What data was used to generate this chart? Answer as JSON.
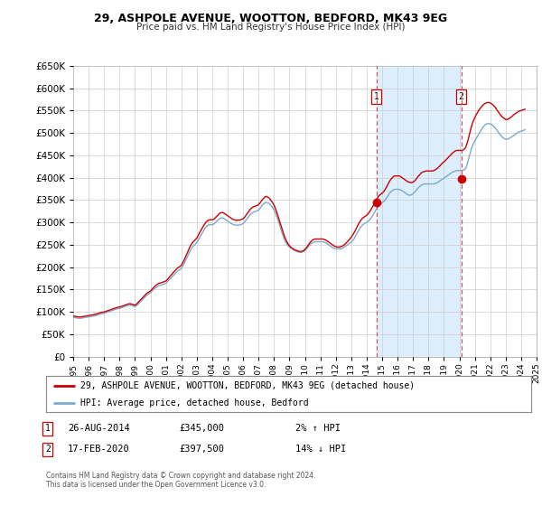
{
  "title": "29, ASHPOLE AVENUE, WOOTTON, BEDFORD, MK43 9EG",
  "subtitle": "Price paid vs. HM Land Registry's House Price Index (HPI)",
  "ylim": [
    0,
    650000
  ],
  "yticks": [
    0,
    50000,
    100000,
    150000,
    200000,
    250000,
    300000,
    350000,
    400000,
    450000,
    500000,
    550000,
    600000,
    650000
  ],
  "line1_color": "#cc0000",
  "line2_color": "#7aaacc",
  "shade_color": "#ddeeff",
  "transaction1_date": 2014.62,
  "transaction1_price": 345000,
  "transaction2_date": 2020.12,
  "transaction2_price": 397500,
  "legend1": "29, ASHPOLE AVENUE, WOOTTON, BEDFORD, MK43 9EG (detached house)",
  "legend2": "HPI: Average price, detached house, Bedford",
  "note1_num": "1",
  "note1_date": "26-AUG-2014",
  "note1_price": "£345,000",
  "note1_hpi": "2% ↑ HPI",
  "note2_num": "2",
  "note2_date": "17-FEB-2020",
  "note2_price": "£397,500",
  "note2_hpi": "14% ↓ HPI",
  "footer": "Contains HM Land Registry data © Crown copyright and database right 2024.\nThis data is licensed under the Open Government Licence v3.0.",
  "background_color": "#ffffff",
  "plot_bg": "#ffffff",
  "grid_color": "#cccccc",
  "hpi_years": [
    1995.0,
    1995.083,
    1995.167,
    1995.25,
    1995.333,
    1995.417,
    1995.5,
    1995.583,
    1995.667,
    1995.75,
    1995.833,
    1995.917,
    1996.0,
    1996.083,
    1996.167,
    1996.25,
    1996.333,
    1996.417,
    1996.5,
    1996.583,
    1996.667,
    1996.75,
    1996.833,
    1996.917,
    1997.0,
    1997.083,
    1997.167,
    1997.25,
    1997.333,
    1997.417,
    1997.5,
    1997.583,
    1997.667,
    1997.75,
    1997.833,
    1997.917,
    1998.0,
    1998.083,
    1998.167,
    1998.25,
    1998.333,
    1998.417,
    1998.5,
    1998.583,
    1998.667,
    1998.75,
    1998.833,
    1998.917,
    1999.0,
    1999.083,
    1999.167,
    1999.25,
    1999.333,
    1999.417,
    1999.5,
    1999.583,
    1999.667,
    1999.75,
    1999.833,
    1999.917,
    2000.0,
    2000.083,
    2000.167,
    2000.25,
    2000.333,
    2000.417,
    2000.5,
    2000.583,
    2000.667,
    2000.75,
    2000.833,
    2000.917,
    2001.0,
    2001.083,
    2001.167,
    2001.25,
    2001.333,
    2001.417,
    2001.5,
    2001.583,
    2001.667,
    2001.75,
    2001.833,
    2001.917,
    2002.0,
    2002.083,
    2002.167,
    2002.25,
    2002.333,
    2002.417,
    2002.5,
    2002.583,
    2002.667,
    2002.75,
    2002.833,
    2002.917,
    2003.0,
    2003.083,
    2003.167,
    2003.25,
    2003.333,
    2003.417,
    2003.5,
    2003.583,
    2003.667,
    2003.75,
    2003.833,
    2003.917,
    2004.0,
    2004.083,
    2004.167,
    2004.25,
    2004.333,
    2004.417,
    2004.5,
    2004.583,
    2004.667,
    2004.75,
    2004.833,
    2004.917,
    2005.0,
    2005.083,
    2005.167,
    2005.25,
    2005.333,
    2005.417,
    2005.5,
    2005.583,
    2005.667,
    2005.75,
    2005.833,
    2005.917,
    2006.0,
    2006.083,
    2006.167,
    2006.25,
    2006.333,
    2006.417,
    2006.5,
    2006.583,
    2006.667,
    2006.75,
    2006.833,
    2006.917,
    2007.0,
    2007.083,
    2007.167,
    2007.25,
    2007.333,
    2007.417,
    2007.5,
    2007.583,
    2007.667,
    2007.75,
    2007.833,
    2007.917,
    2008.0,
    2008.083,
    2008.167,
    2008.25,
    2008.333,
    2008.417,
    2008.5,
    2008.583,
    2008.667,
    2008.75,
    2008.833,
    2008.917,
    2009.0,
    2009.083,
    2009.167,
    2009.25,
    2009.333,
    2009.417,
    2009.5,
    2009.583,
    2009.667,
    2009.75,
    2009.833,
    2009.917,
    2010.0,
    2010.083,
    2010.167,
    2010.25,
    2010.333,
    2010.417,
    2010.5,
    2010.583,
    2010.667,
    2010.75,
    2010.833,
    2010.917,
    2011.0,
    2011.083,
    2011.167,
    2011.25,
    2011.333,
    2011.417,
    2011.5,
    2011.583,
    2011.667,
    2011.75,
    2011.833,
    2011.917,
    2012.0,
    2012.083,
    2012.167,
    2012.25,
    2012.333,
    2012.417,
    2012.5,
    2012.583,
    2012.667,
    2012.75,
    2012.833,
    2012.917,
    2013.0,
    2013.083,
    2013.167,
    2013.25,
    2013.333,
    2013.417,
    2013.5,
    2013.583,
    2013.667,
    2013.75,
    2013.833,
    2013.917,
    2014.0,
    2014.083,
    2014.167,
    2014.25,
    2014.333,
    2014.417,
    2014.5,
    2014.583,
    2014.667,
    2014.75,
    2014.833,
    2014.917,
    2015.0,
    2015.083,
    2015.167,
    2015.25,
    2015.333,
    2015.417,
    2015.5,
    2015.583,
    2015.667,
    2015.75,
    2015.833,
    2015.917,
    2016.0,
    2016.083,
    2016.167,
    2016.25,
    2016.333,
    2016.417,
    2016.5,
    2016.583,
    2016.667,
    2016.75,
    2016.833,
    2016.917,
    2017.0,
    2017.083,
    2017.167,
    2017.25,
    2017.333,
    2017.417,
    2017.5,
    2017.583,
    2017.667,
    2017.75,
    2017.833,
    2017.917,
    2018.0,
    2018.083,
    2018.167,
    2018.25,
    2018.333,
    2018.417,
    2018.5,
    2018.583,
    2018.667,
    2018.75,
    2018.833,
    2018.917,
    2019.0,
    2019.083,
    2019.167,
    2019.25,
    2019.333,
    2019.417,
    2019.5,
    2019.583,
    2019.667,
    2019.75,
    2019.833,
    2019.917,
    2020.0,
    2020.083,
    2020.167,
    2020.25,
    2020.333,
    2020.417,
    2020.5,
    2020.583,
    2020.667,
    2020.75,
    2020.833,
    2020.917,
    2021.0,
    2021.083,
    2021.167,
    2021.25,
    2021.333,
    2021.417,
    2021.5,
    2021.583,
    2021.667,
    2021.75,
    2021.833,
    2021.917,
    2022.0,
    2022.083,
    2022.167,
    2022.25,
    2022.333,
    2022.417,
    2022.5,
    2022.583,
    2022.667,
    2022.75,
    2022.833,
    2022.917,
    2023.0,
    2023.083,
    2023.167,
    2023.25,
    2023.333,
    2023.417,
    2023.5,
    2023.583,
    2023.667,
    2023.75,
    2023.833,
    2023.917,
    2024.0,
    2024.083,
    2024.167,
    2024.25
  ],
  "hpi_vals": [
    88000,
    87500,
    87000,
    86500,
    86000,
    85800,
    86000,
    86500,
    87000,
    87500,
    88000,
    88500,
    89000,
    89500,
    90000,
    90500,
    91000,
    91500,
    92500,
    93500,
    94500,
    95500,
    96000,
    96500,
    97000,
    98000,
    99000,
    100000,
    101000,
    102000,
    103000,
    104000,
    105000,
    106000,
    107000,
    107500,
    108000,
    109000,
    110000,
    111000,
    112000,
    113000,
    114000,
    115000,
    115500,
    115000,
    114000,
    113000,
    112000,
    114000,
    116000,
    119000,
    122000,
    125000,
    128000,
    131000,
    134000,
    137000,
    139000,
    141000,
    143000,
    146000,
    149000,
    152000,
    154000,
    156000,
    158000,
    159000,
    160000,
    161000,
    162000,
    163000,
    164000,
    167000,
    170000,
    173000,
    176000,
    179000,
    182000,
    185000,
    188000,
    191000,
    193000,
    195000,
    197000,
    202000,
    207000,
    213000,
    219000,
    225000,
    231000,
    237000,
    242000,
    246000,
    249000,
    252000,
    255000,
    260000,
    265000,
    270000,
    275000,
    280000,
    285000,
    289000,
    292000,
    294000,
    295000,
    295000,
    295000,
    296000,
    298000,
    301000,
    304000,
    307000,
    309000,
    310000,
    310000,
    309000,
    307000,
    305000,
    303000,
    301000,
    299000,
    297000,
    296000,
    295000,
    294000,
    294000,
    294000,
    294000,
    295000,
    296000,
    297000,
    300000,
    304000,
    308000,
    312000,
    316000,
    319000,
    321000,
    323000,
    324000,
    325000,
    326000,
    328000,
    331000,
    335000,
    339000,
    342000,
    344000,
    345000,
    344000,
    342000,
    340000,
    337000,
    333000,
    328000,
    322000,
    314000,
    306000,
    297000,
    288000,
    279000,
    271000,
    263000,
    257000,
    252000,
    248000,
    245000,
    243000,
    241000,
    239000,
    237000,
    236000,
    235000,
    234000,
    233000,
    233000,
    234000,
    235000,
    237000,
    240000,
    243000,
    247000,
    250000,
    253000,
    255000,
    256000,
    257000,
    257000,
    257000,
    257000,
    257000,
    257000,
    257000,
    256000,
    255000,
    253000,
    251000,
    249000,
    247000,
    245000,
    243000,
    242000,
    241000,
    241000,
    241000,
    241000,
    241000,
    242000,
    244000,
    246000,
    248000,
    250000,
    252000,
    254000,
    256000,
    259000,
    263000,
    268000,
    273000,
    278000,
    283000,
    288000,
    292000,
    295000,
    297000,
    299000,
    300000,
    302000,
    305000,
    308000,
    312000,
    317000,
    322000,
    327000,
    332000,
    337000,
    340000,
    342000,
    344000,
    346000,
    349000,
    353000,
    357000,
    362000,
    366000,
    369000,
    371000,
    373000,
    374000,
    374000,
    374000,
    374000,
    373000,
    372000,
    370000,
    368000,
    366000,
    364000,
    362000,
    361000,
    361000,
    362000,
    364000,
    367000,
    370000,
    374000,
    377000,
    380000,
    382000,
    384000,
    385000,
    386000,
    386000,
    386000,
    386000,
    386000,
    386000,
    386000,
    386000,
    387000,
    388000,
    389000,
    391000,
    393000,
    395000,
    397000,
    399000,
    401000,
    403000,
    405000,
    407000,
    409000,
    411000,
    413000,
    414000,
    415000,
    416000,
    416000,
    416000,
    416000,
    416000,
    417000,
    418000,
    421000,
    430000,
    440000,
    451000,
    461000,
    470000,
    477000,
    482000,
    487000,
    492000,
    497000,
    502000,
    507000,
    511000,
    515000,
    518000,
    520000,
    521000,
    521000,
    520000,
    519000,
    517000,
    514000,
    511000,
    507000,
    503000,
    499000,
    495000,
    492000,
    489000,
    487000,
    486000,
    486000,
    487000,
    488000,
    490000,
    492000,
    494000,
    496000,
    498000,
    500000,
    502000,
    503000,
    504000,
    505000,
    506000,
    507000
  ],
  "price_years": [
    1995.0,
    1995.083,
    1995.167,
    1995.25,
    1995.333,
    1995.417,
    1995.5,
    1995.583,
    1995.667,
    1995.75,
    1995.833,
    1995.917,
    1996.0,
    1996.083,
    1996.167,
    1996.25,
    1996.333,
    1996.417,
    1996.5,
    1996.583,
    1996.667,
    1996.75,
    1996.833,
    1996.917,
    1997.0,
    1997.083,
    1997.167,
    1997.25,
    1997.333,
    1997.417,
    1997.5,
    1997.583,
    1997.667,
    1997.75,
    1997.833,
    1997.917,
    1998.0,
    1998.083,
    1998.167,
    1998.25,
    1998.333,
    1998.417,
    1998.5,
    1998.583,
    1998.667,
    1998.75,
    1998.833,
    1998.917,
    1999.0,
    1999.083,
    1999.167,
    1999.25,
    1999.333,
    1999.417,
    1999.5,
    1999.583,
    1999.667,
    1999.75,
    1999.833,
    1999.917,
    2000.0,
    2000.083,
    2000.167,
    2000.25,
    2000.333,
    2000.417,
    2000.5,
    2000.583,
    2000.667,
    2000.75,
    2000.833,
    2000.917,
    2001.0,
    2001.083,
    2001.167,
    2001.25,
    2001.333,
    2001.417,
    2001.5,
    2001.583,
    2001.667,
    2001.75,
    2001.833,
    2001.917,
    2002.0,
    2002.083,
    2002.167,
    2002.25,
    2002.333,
    2002.417,
    2002.5,
    2002.583,
    2002.667,
    2002.75,
    2002.833,
    2002.917,
    2003.0,
    2003.083,
    2003.167,
    2003.25,
    2003.333,
    2003.417,
    2003.5,
    2003.583,
    2003.667,
    2003.75,
    2003.833,
    2003.917,
    2004.0,
    2004.083,
    2004.167,
    2004.25,
    2004.333,
    2004.417,
    2004.5,
    2004.583,
    2004.667,
    2004.75,
    2004.833,
    2004.917,
    2005.0,
    2005.083,
    2005.167,
    2005.25,
    2005.333,
    2005.417,
    2005.5,
    2005.583,
    2005.667,
    2005.75,
    2005.833,
    2005.917,
    2006.0,
    2006.083,
    2006.167,
    2006.25,
    2006.333,
    2006.417,
    2006.5,
    2006.583,
    2006.667,
    2006.75,
    2006.833,
    2006.917,
    2007.0,
    2007.083,
    2007.167,
    2007.25,
    2007.333,
    2007.417,
    2007.5,
    2007.583,
    2007.667,
    2007.75,
    2007.833,
    2007.917,
    2008.0,
    2008.083,
    2008.167,
    2008.25,
    2008.333,
    2008.417,
    2008.5,
    2008.583,
    2008.667,
    2008.75,
    2008.833,
    2008.917,
    2009.0,
    2009.083,
    2009.167,
    2009.25,
    2009.333,
    2009.417,
    2009.5,
    2009.583,
    2009.667,
    2009.75,
    2009.833,
    2009.917,
    2010.0,
    2010.083,
    2010.167,
    2010.25,
    2010.333,
    2010.417,
    2010.5,
    2010.583,
    2010.667,
    2010.75,
    2010.833,
    2010.917,
    2011.0,
    2011.083,
    2011.167,
    2011.25,
    2011.333,
    2011.417,
    2011.5,
    2011.583,
    2011.667,
    2011.75,
    2011.833,
    2011.917,
    2012.0,
    2012.083,
    2012.167,
    2012.25,
    2012.333,
    2012.417,
    2012.5,
    2012.583,
    2012.667,
    2012.75,
    2012.833,
    2012.917,
    2013.0,
    2013.083,
    2013.167,
    2013.25,
    2013.333,
    2013.417,
    2013.5,
    2013.583,
    2013.667,
    2013.75,
    2013.833,
    2013.917,
    2014.0,
    2014.083,
    2014.167,
    2014.25,
    2014.333,
    2014.417,
    2014.5,
    2014.583,
    2014.667,
    2014.75,
    2014.833,
    2014.917,
    2015.0,
    2015.083,
    2015.167,
    2015.25,
    2015.333,
    2015.417,
    2015.5,
    2015.583,
    2015.667,
    2015.75,
    2015.833,
    2015.917,
    2016.0,
    2016.083,
    2016.167,
    2016.25,
    2016.333,
    2016.417,
    2016.5,
    2016.583,
    2016.667,
    2016.75,
    2016.833,
    2016.917,
    2017.0,
    2017.083,
    2017.167,
    2017.25,
    2017.333,
    2017.417,
    2017.5,
    2017.583,
    2017.667,
    2017.75,
    2017.833,
    2017.917,
    2018.0,
    2018.083,
    2018.167,
    2018.25,
    2018.333,
    2018.417,
    2018.5,
    2018.583,
    2018.667,
    2018.75,
    2018.833,
    2018.917,
    2019.0,
    2019.083,
    2019.167,
    2019.25,
    2019.333,
    2019.417,
    2019.5,
    2019.583,
    2019.667,
    2019.75,
    2019.833,
    2019.917,
    2020.0,
    2020.083,
    2020.167,
    2020.25,
    2020.333,
    2020.417,
    2020.5,
    2020.583,
    2020.667,
    2020.75,
    2020.833,
    2020.917,
    2021.0,
    2021.083,
    2021.167,
    2021.25,
    2021.333,
    2021.417,
    2021.5,
    2021.583,
    2021.667,
    2021.75,
    2021.833,
    2021.917,
    2022.0,
    2022.083,
    2022.167,
    2022.25,
    2022.333,
    2022.417,
    2022.5,
    2022.583,
    2022.667,
    2022.75,
    2022.833,
    2022.917,
    2023.0,
    2023.083,
    2023.167,
    2023.25,
    2023.333,
    2023.417,
    2023.5,
    2023.583,
    2023.667,
    2023.75,
    2023.833,
    2023.917,
    2024.0,
    2024.083,
    2024.167,
    2024.25
  ],
  "price_vals": [
    91000,
    90500,
    90000,
    89500,
    89000,
    88800,
    89000,
    89500,
    90000,
    90500,
    91000,
    91500,
    92000,
    92500,
    93000,
    93500,
    94000,
    94500,
    95500,
    96500,
    97500,
    98500,
    99000,
    99500,
    100000,
    101000,
    102000,
    103000,
    104000,
    105000,
    106000,
    107000,
    108000,
    109000,
    110000,
    110500,
    111000,
    112000,
    113000,
    114000,
    115000,
    116000,
    117000,
    118000,
    118500,
    118000,
    117000,
    116000,
    115000,
    117000,
    120000,
    123000,
    126000,
    129000,
    132000,
    135000,
    138000,
    141000,
    143000,
    145000,
    147000,
    150000,
    153000,
    156000,
    159000,
    161000,
    163000,
    164000,
    165000,
    166000,
    167000,
    168000,
    169000,
    172000,
    175000,
    179000,
    182000,
    185000,
    189000,
    192000,
    195000,
    198000,
    200000,
    202000,
    204000,
    209000,
    215000,
    221000,
    228000,
    234000,
    241000,
    247000,
    252000,
    256000,
    259000,
    262000,
    265000,
    270000,
    276000,
    281000,
    286000,
    291000,
    296000,
    300000,
    303000,
    305000,
    306000,
    306000,
    306000,
    307000,
    309000,
    312000,
    315000,
    318000,
    321000,
    322000,
    322000,
    321000,
    319000,
    317000,
    315000,
    313000,
    311000,
    309000,
    307000,
    306000,
    305000,
    305000,
    305000,
    305000,
    306000,
    307000,
    308000,
    311000,
    315000,
    319000,
    323000,
    327000,
    331000,
    333000,
    335000,
    336000,
    337000,
    338000,
    340000,
    343000,
    347000,
    351000,
    354000,
    357000,
    358000,
    357000,
    355000,
    352000,
    348000,
    344000,
    339000,
    332000,
    324000,
    315000,
    306000,
    297000,
    288000,
    279000,
    270000,
    263000,
    257000,
    252000,
    248000,
    245000,
    243000,
    241000,
    239000,
    238000,
    237000,
    236000,
    235000,
    235000,
    236000,
    237000,
    240000,
    243000,
    247000,
    251000,
    255000,
    258000,
    261000,
    262000,
    263000,
    263000,
    263000,
    263000,
    263000,
    263000,
    263000,
    262000,
    261000,
    259000,
    257000,
    255000,
    253000,
    251000,
    249000,
    247000,
    246000,
    245000,
    245000,
    245000,
    246000,
    247000,
    249000,
    251000,
    254000,
    257000,
    260000,
    263000,
    267000,
    271000,
    276000,
    281000,
    287000,
    293000,
    298000,
    303000,
    307000,
    310000,
    312000,
    314000,
    316000,
    319000,
    323000,
    327000,
    332000,
    337000,
    342000,
    347000,
    353000,
    358000,
    361000,
    363000,
    365000,
    368000,
    372000,
    377000,
    382000,
    388000,
    393000,
    397000,
    400000,
    403000,
    404000,
    404000,
    404000,
    404000,
    403000,
    401000,
    399000,
    397000,
    395000,
    393000,
    391000,
    390000,
    389000,
    389000,
    390000,
    392000,
    395000,
    399000,
    403000,
    406000,
    409000,
    412000,
    413000,
    414000,
    415000,
    415000,
    415000,
    415000,
    415000,
    415000,
    416000,
    417000,
    419000,
    421000,
    424000,
    427000,
    430000,
    433000,
    435000,
    438000,
    441000,
    444000,
    447000,
    450000,
    453000,
    456000,
    458000,
    460000,
    461000,
    461000,
    461000,
    461000,
    461000,
    462000,
    464000,
    468000,
    477000,
    487000,
    499000,
    510000,
    520000,
    528000,
    534000,
    540000,
    545000,
    550000,
    554000,
    558000,
    561000,
    564000,
    566000,
    567000,
    568000,
    568000,
    567000,
    565000,
    563000,
    560000,
    557000,
    552000,
    548000,
    544000,
    540000,
    537000,
    534000,
    532000,
    530000,
    530000,
    531000,
    533000,
    535000,
    537000,
    540000,
    542000,
    544000,
    546000,
    548000,
    549000,
    550000,
    551000,
    552000,
    553000
  ]
}
